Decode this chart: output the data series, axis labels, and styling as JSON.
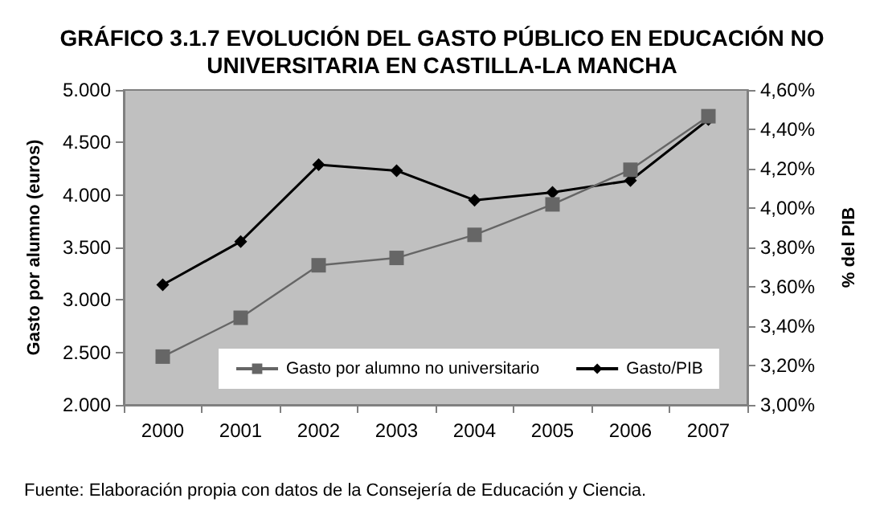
{
  "chart_data": {
    "type": "line",
    "title": "GRÁFICO 3.1.7 EVOLUCIÓN DEL GASTO PÚBLICO EN EDUCACIÓN NO\nUNIVERSITARIA EN CASTILLA-LA MANCHA",
    "ylabel": "Gasto por alumno (euros)",
    "y2label": "% del PIB",
    "annotations": [
      "Fuente: Elaboración propia con datos de la Consejería de Educación y Ciencia."
    ],
    "categories": [
      "2000",
      "2001",
      "2002",
      "2003",
      "2004",
      "2005",
      "2006",
      "2007"
    ],
    "series": [
      {
        "name": "Gasto por alumno no universitario",
        "color": "#666666",
        "marker": "square",
        "values": [
          2460,
          2830,
          3330,
          3400,
          3620,
          3910,
          4240,
          4750
        ]
      },
      {
        "name": "Gasto/PIB",
        "color": "#000000",
        "marker": "diamond",
        "axis": "y2",
        "values": [
          3.61,
          3.83,
          4.22,
          4.19,
          4.04,
          4.08,
          4.14,
          4.45
        ]
      }
    ],
    "ylim": [
      2000,
      5000
    ],
    "yticks": [
      {
        "value": 2000,
        "label": "2.000"
      },
      {
        "value": 2500,
        "label": "2.500"
      },
      {
        "value": 3000,
        "label": "3.000"
      },
      {
        "value": 3500,
        "label": "3.500"
      },
      {
        "value": 4000,
        "label": "4.000"
      },
      {
        "value": 4500,
        "label": "4.500"
      },
      {
        "value": 5000,
        "label": "5.000"
      }
    ],
    "y2lim": [
      3.0,
      4.6
    ],
    "y2ticks": [
      {
        "value": 3.0,
        "label": "3,00%"
      },
      {
        "value": 3.2,
        "label": "3,20%"
      },
      {
        "value": 3.4,
        "label": "3,40%"
      },
      {
        "value": 3.6,
        "label": "3,60%"
      },
      {
        "value": 3.8,
        "label": "3,80%"
      },
      {
        "value": 4.0,
        "label": "4,00%"
      },
      {
        "value": 4.2,
        "label": "4,20%"
      },
      {
        "value": 4.4,
        "label": "4,40%"
      },
      {
        "value": 4.6,
        "label": "4,60%"
      }
    ],
    "grid": false,
    "legend": "bottom",
    "line_style": "solid"
  }
}
